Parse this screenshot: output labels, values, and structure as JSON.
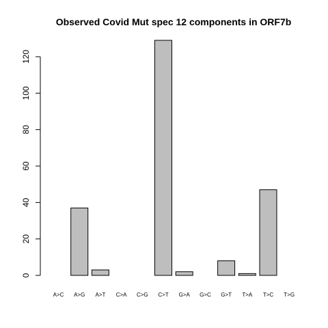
{
  "chart_data": {
    "type": "bar",
    "title": "Observed Covid Mut spec 12 components in ORF7b",
    "xlabel": "",
    "ylabel": "",
    "categories": [
      "A>C",
      "A>G",
      "A>T",
      "C>A",
      "C>G",
      "C>T",
      "G>A",
      "G>C",
      "G>T",
      "T>A",
      "T>C",
      "T>G"
    ],
    "values": [
      0,
      37,
      3,
      0,
      0,
      129,
      2,
      0,
      8,
      1,
      47,
      0
    ],
    "yticks": [
      "0",
      "20",
      "40",
      "60",
      "80",
      "100",
      "120"
    ],
    "ylim": [
      0,
      132
    ],
    "grid": false,
    "legend": "none",
    "colors": {
      "bar_fill": "#bebebe",
      "bar_stroke": "#000000",
      "axis": "#000000"
    }
  }
}
